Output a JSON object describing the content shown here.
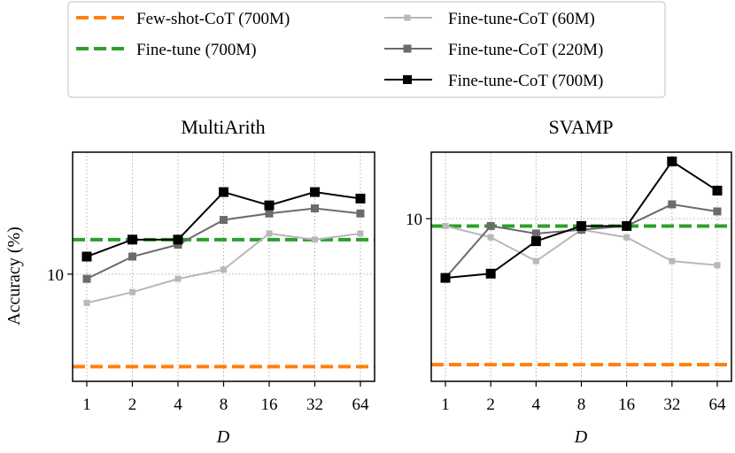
{
  "legend": {
    "entries": [
      {
        "label": "Few-shot-CoT (700M)",
        "color": "#ff7f0e",
        "style": "dashed"
      },
      {
        "label": "Fine-tune (700M)",
        "color": "#2ca02c",
        "style": "dashed"
      },
      {
        "label": "Fine-tune-CoT (60M)",
        "color": "#b8b8b8",
        "style": "solid-square"
      },
      {
        "label": "Fine-tune-CoT (220M)",
        "color": "#6b6b6b",
        "style": "solid-square"
      },
      {
        "label": "Fine-tune-CoT (700M)",
        "color": "#000000",
        "style": "solid-square"
      }
    ]
  },
  "chart_data": [
    {
      "type": "line",
      "title": "MultiArith",
      "xlabel": "D",
      "ylabel": "Accuracy (%)",
      "yscale": "log",
      "ylim": [
        5.0,
        22.0
      ],
      "yticks": [
        10
      ],
      "yticklabels": [
        "10"
      ],
      "grid": true,
      "categories": [
        "1",
        "2",
        "4",
        "8",
        "16",
        "32",
        "64"
      ],
      "hlines": [
        {
          "name": "Few-shot-CoT (700M)",
          "value": 5.5,
          "color": "#ff7f0e"
        },
        {
          "name": "Fine-tune (700M)",
          "value": 12.5,
          "color": "#2ca02c"
        }
      ],
      "series": [
        {
          "name": "Fine-tune-CoT (60M)",
          "color": "#b8b8b8",
          "values": [
            8.3,
            8.9,
            9.7,
            10.3,
            13.0,
            12.5,
            13.0
          ]
        },
        {
          "name": "Fine-tune-CoT (220M)",
          "color": "#6b6b6b",
          "values": [
            9.7,
            11.2,
            12.1,
            14.2,
            14.8,
            15.3,
            14.8
          ]
        },
        {
          "name": "Fine-tune-CoT (700M)",
          "color": "#000000",
          "values": [
            11.2,
            12.5,
            12.5,
            17.0,
            15.6,
            17.0,
            16.3
          ]
        }
      ]
    },
    {
      "type": "line",
      "title": "SVAMP",
      "xlabel": "D",
      "ylabel": "",
      "yscale": "log",
      "ylim": [
        6.4,
        12.0
      ],
      "yticks": [
        10
      ],
      "yticklabels": [
        "10"
      ],
      "grid": true,
      "categories": [
        "1",
        "2",
        "4",
        "8",
        "16",
        "32",
        "64"
      ],
      "hlines": [
        {
          "name": "Few-shot-CoT (700M)",
          "value": 6.7,
          "color": "#ff7f0e"
        },
        {
          "name": "Fine-tune (700M)",
          "value": 9.8,
          "color": "#2ca02c"
        }
      ],
      "series": [
        {
          "name": "Fine-tune-CoT (60M)",
          "color": "#b8b8b8",
          "values": [
            9.8,
            9.5,
            8.9,
            9.7,
            9.5,
            8.9,
            8.8
          ]
        },
        {
          "name": "Fine-tune-CoT (220M)",
          "color": "#6b6b6b",
          "values": [
            8.5,
            9.8,
            9.6,
            9.7,
            9.8,
            10.4,
            10.2
          ]
        },
        {
          "name": "Fine-tune-CoT (700M)",
          "color": "#000000",
          "values": [
            8.5,
            8.6,
            9.4,
            9.8,
            9.8,
            11.7,
            10.8
          ]
        }
      ]
    }
  ]
}
